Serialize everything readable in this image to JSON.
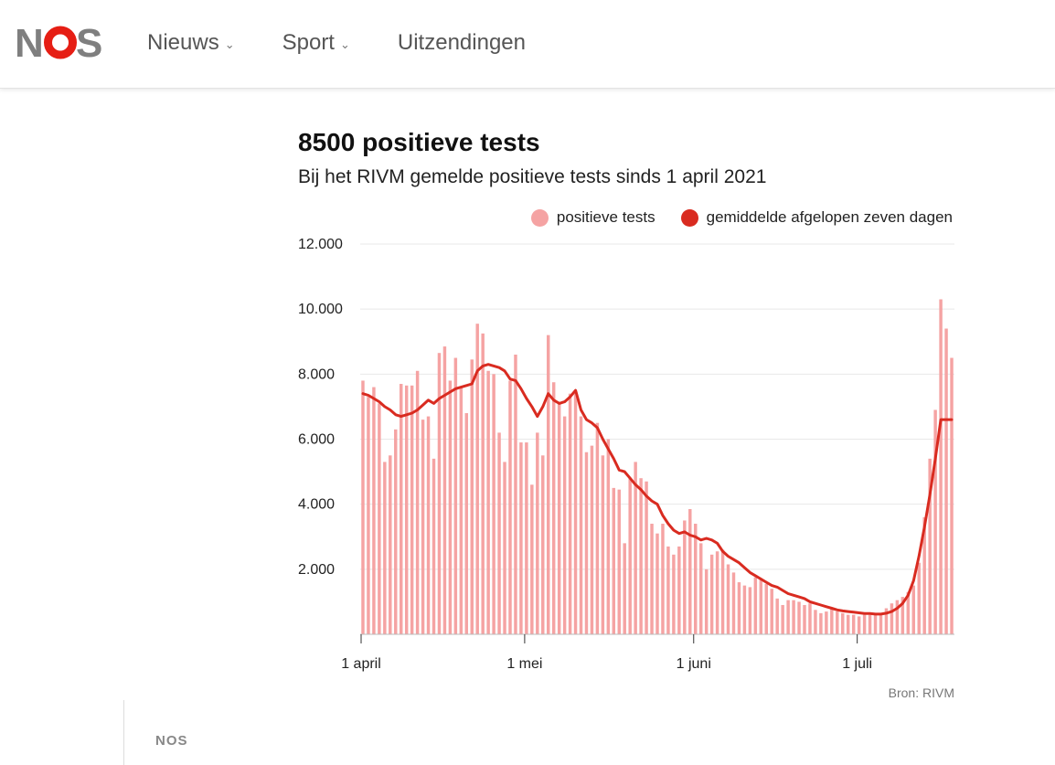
{
  "header": {
    "logo": "NOS",
    "logo_colors": {
      "letters": "#7f7f7f",
      "circle": "#e61e14"
    },
    "nav": [
      {
        "label": "Nieuws",
        "has_dropdown": true
      },
      {
        "label": "Sport",
        "has_dropdown": true
      },
      {
        "label": "Uitzendingen",
        "has_dropdown": false
      }
    ]
  },
  "footer": {
    "brand": "NOS"
  },
  "chart_data": {
    "type": "bar",
    "title": "8500 positieve tests",
    "subtitle": "Bij het RIVM gemelde positieve tests sinds 1 april 2021",
    "source": "Bron: RIVM",
    "legend_position": "top-right",
    "grid": true,
    "colors": {
      "bars": "#f5a3a3",
      "line": "#d92b20"
    },
    "ylim": [
      0,
      12000
    ],
    "yticks": [
      {
        "value": 2000,
        "label": "2.000"
      },
      {
        "value": 4000,
        "label": "4.000"
      },
      {
        "value": 6000,
        "label": "6.000"
      },
      {
        "value": 8000,
        "label": "8.000"
      },
      {
        "value": 10000,
        "label": "10.000"
      },
      {
        "value": 12000,
        "label": "12.000"
      }
    ],
    "xticks": [
      {
        "date": "2021-04-01",
        "label": "1 april"
      },
      {
        "date": "2021-05-01",
        "label": "1 mei"
      },
      {
        "date": "2021-06-01",
        "label": "1 juni"
      },
      {
        "date": "2021-07-01",
        "label": "1 juli"
      }
    ],
    "x_start": "2021-04-01",
    "x_end": "2021-07-12",
    "series": [
      {
        "name": "positieve tests",
        "type": "bar",
        "values": [
          7800,
          7300,
          7600,
          7100,
          5300,
          5500,
          6300,
          7700,
          7650,
          7650,
          8100,
          6600,
          6700,
          5400,
          8650,
          8850,
          7800,
          8500,
          7600,
          6800,
          8450,
          9550,
          9250,
          8100,
          8000,
          6200,
          5300,
          7800,
          8600,
          5900,
          5900,
          4600,
          6200,
          5500,
          9200,
          7750,
          7100,
          6700,
          7400,
          7400,
          6700,
          5600,
          5800,
          6500,
          5500,
          6000,
          4500,
          4450,
          2800,
          4800,
          5300,
          4800,
          4700,
          3400,
          3100,
          3400,
          2700,
          2450,
          2700,
          3500,
          3850,
          3400,
          2800,
          2000,
          2450,
          2550,
          2600,
          2150,
          1900,
          1600,
          1500,
          1450,
          1750,
          1700,
          1550,
          1400,
          1100,
          900,
          1050,
          1050,
          1000,
          900,
          950,
          750,
          650,
          700,
          800,
          700,
          650,
          600,
          600,
          550,
          600,
          600,
          650,
          600,
          800,
          950,
          1050,
          1150,
          1300,
          1500,
          2200,
          3600,
          5400,
          6900,
          10300,
          9400,
          8500
        ]
      },
      {
        "name": "gemiddelde afgelopen zeven dagen",
        "type": "line",
        "values": [
          7400,
          7350,
          7250,
          7150,
          7000,
          6900,
          6750,
          6700,
          6750,
          6800,
          6900,
          7050,
          7200,
          7100,
          7250,
          7350,
          7450,
          7550,
          7600,
          7650,
          7700,
          8100,
          8250,
          8300,
          8250,
          8200,
          8100,
          7850,
          7800,
          7550,
          7250,
          7000,
          6700,
          7000,
          7400,
          7200,
          7100,
          7150,
          7300,
          7500,
          6900,
          6600,
          6500,
          6350,
          6000,
          5700,
          5400,
          5050,
          5000,
          4800,
          4600,
          4450,
          4250,
          4100,
          4000,
          3650,
          3400,
          3200,
          3100,
          3150,
          3050,
          3000,
          2900,
          2950,
          2900,
          2800,
          2550,
          2400,
          2300,
          2200,
          2050,
          1900,
          1800,
          1700,
          1600,
          1500,
          1450,
          1350,
          1250,
          1200,
          1150,
          1100,
          1000,
          950,
          900,
          850,
          800,
          750,
          720,
          700,
          680,
          660,
          640,
          640,
          620,
          620,
          650,
          700,
          800,
          950,
          1200,
          1650,
          2400,
          3300,
          4300,
          5400,
          6600,
          6600,
          6600
        ]
      }
    ]
  }
}
